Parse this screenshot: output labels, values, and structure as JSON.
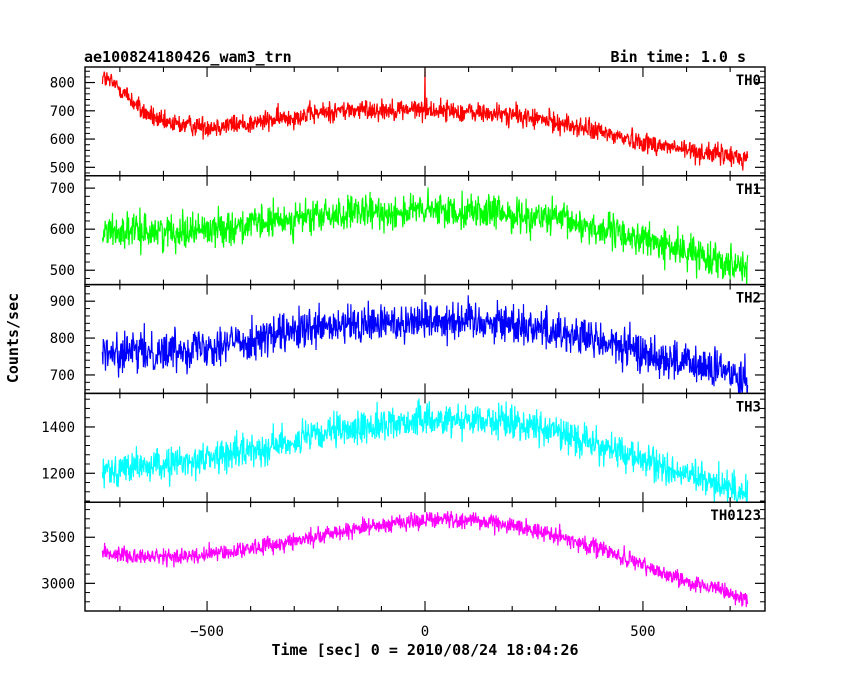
{
  "chart_data": {
    "type": "line",
    "title_left": "ae100824180426_wam3_trn",
    "title_right": "Bin time: 1.0 s",
    "xlabel": "Time [sec] 0 = 2010/08/24 18:04:26",
    "ylabel": "Counts/sec",
    "xlim": [
      -780,
      780
    ],
    "x_data_range": [
      -740,
      740
    ],
    "x_ticks": [
      -500,
      0,
      500
    ],
    "x_tick_labels": [
      "−500",
      "0",
      "500"
    ],
    "grid": false,
    "panels": [
      {
        "name": "TH0",
        "color": "#ff0000",
        "ylim": [
          470,
          855
        ],
        "y_ticks": [
          500,
          600,
          700,
          800
        ],
        "y_tick_labels": [
          "500",
          "600",
          "700",
          "800"
        ],
        "trend_t": [
          -740,
          -700,
          -650,
          -600,
          -500,
          -400,
          -300,
          -200,
          -100,
          0,
          100,
          200,
          300,
          400,
          500,
          600,
          700,
          740
        ],
        "trend_v": [
          820,
          780,
          700,
          655,
          645,
          655,
          680,
          700,
          705,
          705,
          695,
          685,
          660,
          625,
          590,
          560,
          540,
          530
        ],
        "noise_amp": 34,
        "spikes": [
          {
            "t": 0,
            "v": 850
          }
        ]
      },
      {
        "name": "TH1",
        "color": "#00ff00",
        "ylim": [
          465,
          730
        ],
        "y_ticks": [
          500,
          600,
          700
        ],
        "y_tick_labels": [
          "500",
          "600",
          "700"
        ],
        "trend_t": [
          -740,
          -600,
          -500,
          -400,
          -300,
          -200,
          -100,
          0,
          100,
          200,
          300,
          400,
          500,
          600,
          700,
          740
        ],
        "trend_v": [
          595,
          595,
          600,
          610,
          625,
          635,
          640,
          645,
          645,
          635,
          625,
          600,
          575,
          545,
          520,
          510
        ],
        "noise_amp": 38,
        "spikes": []
      },
      {
        "name": "TH2",
        "color": "#0000ff",
        "ylim": [
          650,
          945
        ],
        "y_ticks": [
          700,
          800,
          900
        ],
        "y_tick_labels": [
          "700",
          "800",
          "900"
        ],
        "trend_t": [
          -740,
          -600,
          -500,
          -400,
          -300,
          -200,
          -100,
          0,
          100,
          200,
          300,
          400,
          500,
          600,
          700,
          740
        ],
        "trend_v": [
          755,
          765,
          780,
          795,
          815,
          830,
          840,
          850,
          850,
          840,
          820,
          790,
          760,
          730,
          705,
          695
        ],
        "noise_amp": 50,
        "spikes": []
      },
      {
        "name": "TH3",
        "color": "#00ffff",
        "ylim": [
          1075,
          1545
        ],
        "y_ticks": [
          1200,
          1400
        ],
        "y_tick_labels": [
          "1200",
          "1400"
        ],
        "trend_t": [
          -740,
          -600,
          -500,
          -400,
          -300,
          -200,
          -100,
          0,
          100,
          200,
          300,
          400,
          500,
          600,
          700,
          740
        ],
        "trend_v": [
          1215,
          1235,
          1265,
          1300,
          1340,
          1380,
          1410,
          1430,
          1435,
          1420,
          1380,
          1320,
          1255,
          1190,
          1140,
          1115
        ],
        "noise_amp": 65,
        "spikes": []
      },
      {
        "name": "TH0123",
        "color": "#ff00ff",
        "ylim": [
          2700,
          3880
        ],
        "y_ticks": [
          3000,
          3500
        ],
        "y_tick_labels": [
          "3000",
          "3500"
        ],
        "trend_t": [
          -740,
          -600,
          -500,
          -400,
          -300,
          -200,
          -100,
          0,
          100,
          200,
          300,
          400,
          500,
          600,
          700,
          740
        ],
        "trend_v": [
          3330,
          3280,
          3310,
          3380,
          3460,
          3560,
          3640,
          3690,
          3690,
          3630,
          3520,
          3380,
          3190,
          3030,
          2880,
          2820
        ],
        "noise_amp": 85,
        "spikes": []
      }
    ]
  }
}
